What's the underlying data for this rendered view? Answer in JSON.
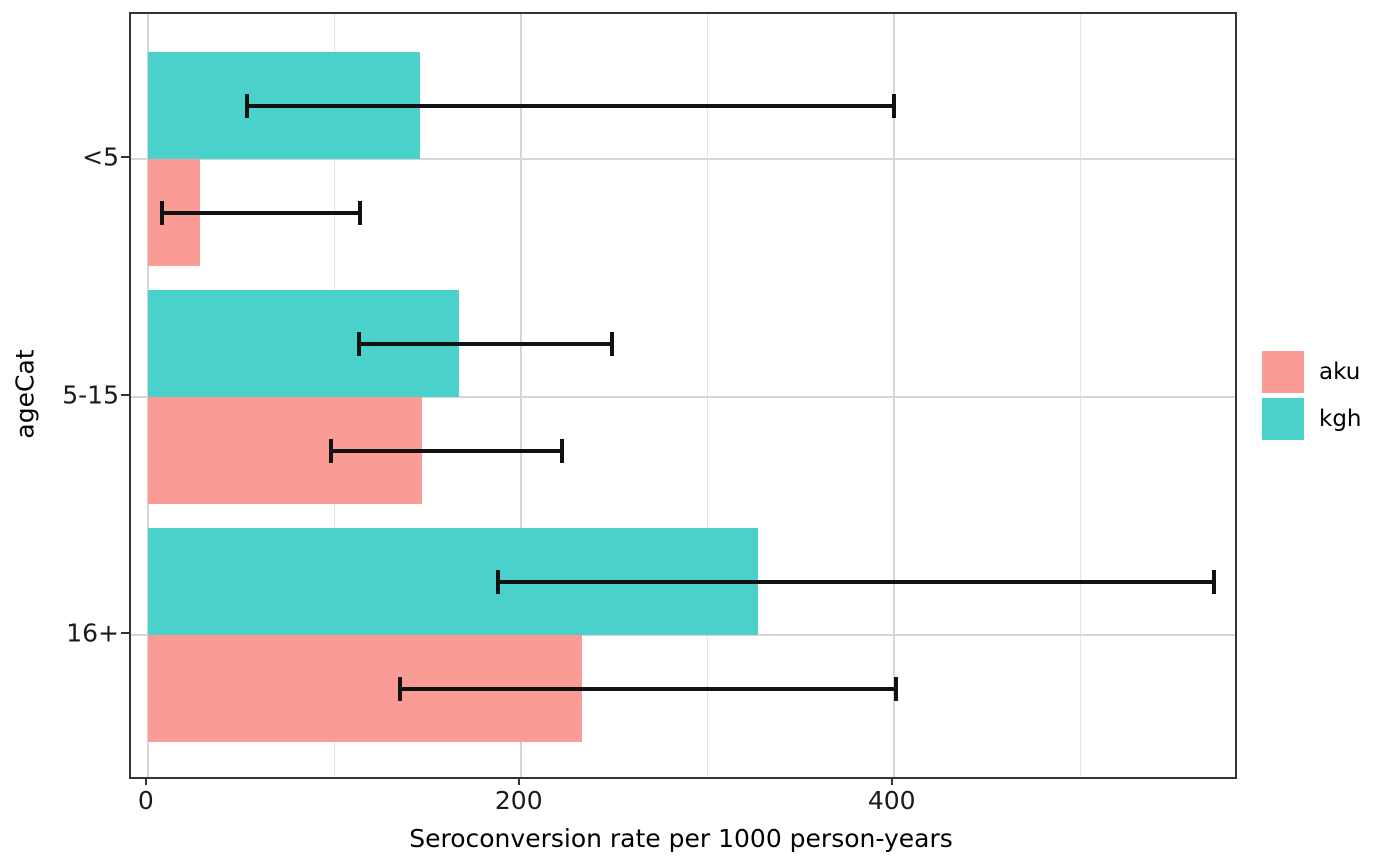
{
  "chart_data": {
    "type": "bar",
    "orientation": "horizontal",
    "title": "",
    "xlabel": "Seroconversion rate per 1000 person-years",
    "ylabel": "ageCat",
    "categories": [
      "<5",
      "5-15",
      "16+"
    ],
    "series": [
      {
        "name": "aku",
        "color": "#FA9C95",
        "dodge_position": "bottom",
        "values": [
          28,
          147,
          233
        ],
        "ci_low": [
          7.5,
          98,
          135
        ],
        "ci_high": [
          114,
          222,
          401
        ]
      },
      {
        "name": "kgh",
        "color": "#4BD1CC",
        "dodge_position": "top",
        "values": [
          146,
          167,
          327
        ],
        "ci_low": [
          53,
          113,
          188
        ],
        "ci_high": [
          400,
          249,
          572
        ]
      }
    ],
    "x_ticks": [
      0,
      200,
      400
    ],
    "x_minor_ticks": [
      100,
      300,
      500
    ],
    "xlim": [
      -9,
      583
    ],
    "grid": true,
    "legend_position": "right",
    "error_bar_color": "#111111",
    "panel_border_color": "#333333"
  }
}
